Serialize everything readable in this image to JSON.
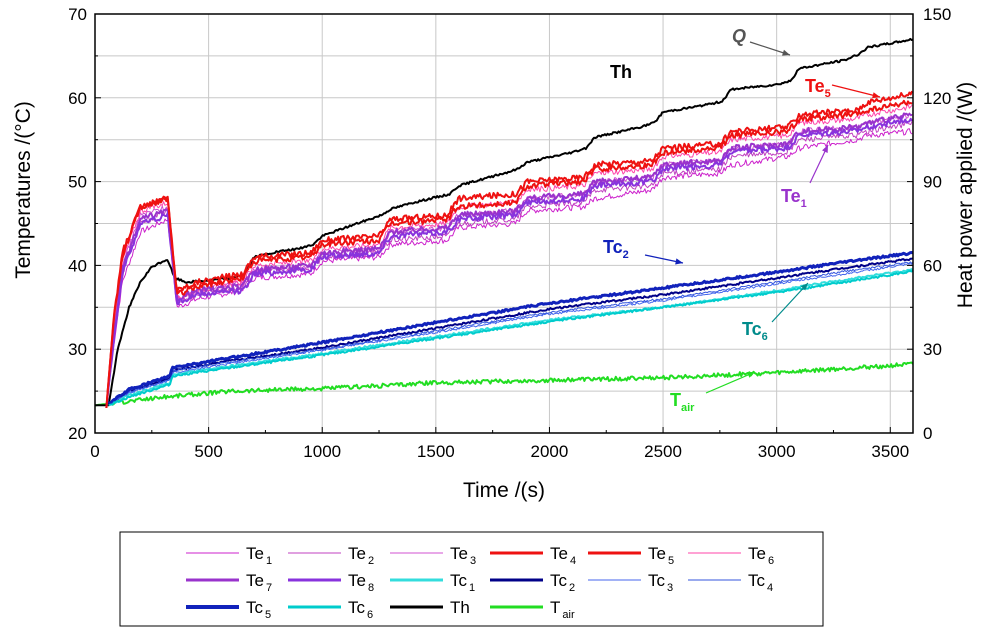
{
  "chart_data": {
    "type": "line",
    "xlabel": "Time   /(s)",
    "ylabel_left": "Temperatures   /(°C)",
    "ylabel_right": "Heat power applied   /(W)",
    "xlim": [
      0,
      3600
    ],
    "ylim_left": [
      20,
      70
    ],
    "ylim_right": [
      0,
      150
    ],
    "xticks": [
      0,
      500,
      1000,
      1500,
      2000,
      2500,
      3000,
      3500
    ],
    "yticks_left": [
      20,
      30,
      40,
      50,
      60,
      70
    ],
    "yticks_right": [
      0,
      30,
      60,
      90,
      120,
      150
    ],
    "grid": true,
    "legend_placement": "bottom",
    "series": [
      {
        "name": "Te1",
        "sub": "1",
        "base": "Te",
        "color": "#cc22cc",
        "width": 1,
        "axis": "left",
        "x": [
          50,
          80,
          120,
          200,
          320,
          360,
          450,
          650,
          700,
          950,
          1000,
          1250,
          1300,
          1550,
          1600,
          1850,
          1900,
          2150,
          2200,
          2450,
          2500,
          2750,
          2800,
          3050,
          3100,
          3350,
          3400,
          3600
        ],
        "y": [
          23,
          30,
          38,
          44,
          45.5,
          35,
          36,
          37,
          38.5,
          39,
          40.5,
          41,
          42.5,
          43,
          44.5,
          45,
          46.5,
          47,
          48,
          49,
          50.5,
          51,
          52,
          53,
          54,
          55,
          55.5,
          56
        ]
      },
      {
        "name": "Te2",
        "sub": "2",
        "base": "Te",
        "color": "#c040c0",
        "width": 1,
        "axis": "left",
        "x": [
          50,
          80,
          120,
          200,
          320,
          360,
          450,
          650,
          700,
          950,
          1000,
          1250,
          1300,
          1550,
          1600,
          1850,
          1900,
          2150,
          2200,
          2450,
          2500,
          2750,
          2800,
          3050,
          3100,
          3350,
          3400,
          3600
        ],
        "y": [
          23,
          31,
          39,
          45,
          46.5,
          35.5,
          36.5,
          37.5,
          39,
          39.5,
          41,
          41.5,
          43,
          43.5,
          45,
          45.5,
          47,
          47.5,
          49,
          49.5,
          51,
          51.5,
          53,
          53.5,
          55,
          55.5,
          56,
          57
        ]
      },
      {
        "name": "Te3",
        "sub": "3",
        "base": "Te",
        "color": "#d050d0",
        "width": 1,
        "axis": "left",
        "x": [
          50,
          80,
          120,
          200,
          320,
          360,
          450,
          650,
          700,
          950,
          1000,
          1250,
          1300,
          1550,
          1600,
          1850,
          1900,
          2150,
          2200,
          2450,
          2500,
          2750,
          2800,
          3050,
          3100,
          3350,
          3400,
          3600
        ],
        "y": [
          23,
          32,
          40,
          46,
          47,
          36,
          37,
          38,
          39.5,
          40,
          41.5,
          42,
          44,
          44.5,
          46,
          46.5,
          48,
          48.5,
          50,
          50.5,
          52,
          52.5,
          54,
          54.5,
          56,
          56.5,
          57,
          58
        ]
      },
      {
        "name": "Te4",
        "sub": "4",
        "base": "Te",
        "color": "#ee1111",
        "width": 2,
        "axis": "left",
        "x": [
          50,
          80,
          120,
          200,
          320,
          360,
          450,
          650,
          700,
          950,
          1000,
          1250,
          1300,
          1550,
          1600,
          1850,
          1900,
          2150,
          2200,
          2450,
          2500,
          2750,
          2800,
          3050,
          3100,
          3350,
          3400,
          3600
        ],
        "y": [
          23,
          33,
          41,
          47,
          48,
          36.5,
          37.5,
          38.5,
          40.5,
          41,
          42.5,
          43,
          45,
          45.5,
          47,
          47.5,
          49.5,
          50,
          51.5,
          52,
          53.5,
          54,
          55.5,
          56,
          57.5,
          58,
          58.5,
          59.5
        ]
      },
      {
        "name": "Te5",
        "sub": "5",
        "base": "Te",
        "color": "#ee1111",
        "width": 2,
        "axis": "left",
        "x": [
          50,
          80,
          120,
          200,
          320,
          360,
          450,
          650,
          700,
          950,
          1000,
          1250,
          1300,
          1550,
          1600,
          1850,
          1900,
          2150,
          2200,
          2450,
          2500,
          2750,
          2800,
          3050,
          3100,
          3350,
          3400,
          3600
        ],
        "y": [
          23,
          33,
          41.5,
          47,
          48,
          37,
          38,
          39,
          41,
          41.5,
          43,
          43.5,
          45.5,
          46,
          48,
          48.5,
          50,
          50.5,
          52,
          52.5,
          54,
          54.5,
          56,
          56.5,
          58,
          58.5,
          59.5,
          60.5
        ]
      },
      {
        "name": "Te6",
        "sub": "6",
        "base": "Te",
        "color": "#ff44aa",
        "width": 1,
        "axis": "left",
        "x": [
          50,
          80,
          120,
          200,
          320,
          360,
          450,
          650,
          700,
          950,
          1000,
          1250,
          1300,
          1550,
          1600,
          1850,
          1900,
          2150,
          2200,
          2450,
          2500,
          2750,
          2800,
          3050,
          3100,
          3350,
          3400,
          3600
        ],
        "y": [
          23,
          32,
          40.5,
          46.5,
          47.5,
          36,
          37,
          38,
          40,
          40.5,
          42,
          42.5,
          44.5,
          45,
          47,
          47.5,
          49,
          49.5,
          51,
          51.5,
          53,
          53.5,
          55,
          55.5,
          57,
          57.5,
          58,
          59
        ]
      },
      {
        "name": "Te7",
        "sub": "7",
        "base": "Te",
        "color": "#9933cc",
        "width": 2,
        "axis": "left",
        "x": [
          50,
          80,
          120,
          200,
          320,
          360,
          450,
          650,
          700,
          950,
          1000,
          1250,
          1300,
          1550,
          1600,
          1850,
          1900,
          2150,
          2200,
          2450,
          2500,
          2750,
          2800,
          3050,
          3100,
          3350,
          3400,
          3600
        ],
        "y": [
          23,
          31,
          39.5,
          45.5,
          46.5,
          36,
          37,
          37.5,
          39.5,
          40,
          41.5,
          42,
          44,
          44.5,
          46,
          46.5,
          48,
          48.5,
          50,
          50.5,
          52,
          52.5,
          54,
          54.5,
          56,
          56.5,
          57,
          58
        ]
      },
      {
        "name": "Te8",
        "sub": "8",
        "base": "Te",
        "color": "#8833dd",
        "width": 2,
        "axis": "left",
        "x": [
          50,
          80,
          120,
          200,
          320,
          360,
          450,
          650,
          700,
          950,
          1000,
          1250,
          1300,
          1550,
          1600,
          1850,
          1900,
          2150,
          2200,
          2450,
          2500,
          2750,
          2800,
          3050,
          3100,
          3350,
          3400,
          3600
        ],
        "y": [
          23,
          30.5,
          39,
          45,
          46,
          35.5,
          36.5,
          37,
          39,
          39.5,
          41,
          41.5,
          43.5,
          44,
          45.5,
          46,
          47.5,
          48,
          49.5,
          50,
          51.5,
          52,
          53.5,
          54,
          55.5,
          56,
          56.5,
          57.5
        ]
      },
      {
        "name": "Tc1",
        "sub": "1",
        "base": "Tc",
        "color": "#33dddd",
        "width": 2,
        "axis": "left",
        "x": [
          60,
          150,
          330,
          340,
          600,
          1000,
          1500,
          2000,
          2500,
          3000,
          3300,
          3600
        ],
        "y": [
          23.5,
          24.5,
          26,
          27,
          28,
          29.5,
          31.5,
          33.5,
          35,
          37,
          38.3,
          39.5
        ]
      },
      {
        "name": "Tc2",
        "sub": "2",
        "base": "Tc",
        "color": "#000088",
        "width": 2,
        "axis": "left",
        "x": [
          60,
          150,
          330,
          340,
          600,
          1000,
          1500,
          2000,
          2500,
          3000,
          3300,
          3600
        ],
        "y": [
          23.5,
          25,
          26.5,
          27.5,
          28.6,
          30.2,
          32.5,
          34.8,
          36.5,
          38.5,
          39.7,
          40.8
        ]
      },
      {
        "name": "Tc3",
        "sub": "3",
        "base": "Tc",
        "color": "#4466ee",
        "width": 1,
        "axis": "left",
        "x": [
          60,
          150,
          330,
          340,
          600,
          1000,
          1500,
          2000,
          2500,
          3000,
          3300,
          3600
        ],
        "y": [
          23.5,
          24.8,
          26.3,
          27.2,
          28.3,
          29.9,
          32,
          34.2,
          35.8,
          37.8,
          39,
          40.2
        ]
      },
      {
        "name": "Tc4",
        "sub": "4",
        "base": "Tc",
        "color": "#3355dd",
        "width": 1,
        "axis": "left",
        "x": [
          60,
          150,
          330,
          340,
          600,
          1000,
          1500,
          2000,
          2500,
          3000,
          3300,
          3600
        ],
        "y": [
          23.5,
          24.9,
          26.4,
          27.4,
          28.5,
          30,
          32.2,
          34.4,
          36,
          38,
          39.3,
          40.4
        ]
      },
      {
        "name": "Tc5",
        "sub": "5",
        "base": "Tc",
        "color": "#1122bb",
        "width": 3,
        "axis": "left",
        "x": [
          60,
          150,
          330,
          340,
          600,
          1000,
          1500,
          2000,
          2500,
          3000,
          3300,
          3600
        ],
        "y": [
          23.5,
          25.2,
          26.8,
          27.8,
          29,
          30.8,
          33.2,
          35.5,
          37.3,
          39.2,
          40.4,
          41.5
        ]
      },
      {
        "name": "Tc6",
        "sub": "6",
        "base": "Tc",
        "color": "#00cccc",
        "width": 2,
        "axis": "left",
        "x": [
          60,
          150,
          330,
          340,
          600,
          1000,
          1500,
          2000,
          2500,
          3000,
          3300,
          3600
        ],
        "y": [
          23.3,
          24.3,
          25.8,
          26.8,
          27.8,
          29.3,
          31.3,
          33.3,
          35,
          36.8,
          38,
          39.3
        ]
      },
      {
        "name": "Th",
        "sub": "",
        "base": "Th",
        "color": "#000000",
        "width": 2,
        "axis": "left",
        "x": [
          0,
          60,
          70,
          100,
          150,
          200,
          250,
          300,
          320,
          350,
          400,
          500,
          600,
          660,
          700,
          800,
          900,
          960,
          1000,
          1100,
          1260,
          1300,
          1400,
          1560,
          1600,
          1800,
          1860,
          1900,
          2100,
          2160,
          2200,
          2400,
          2460,
          2500,
          2700,
          2760,
          2800,
          3000,
          3060,
          3100,
          3300,
          3360,
          3400,
          3600
        ],
        "y": [
          23.3,
          23.3,
          25,
          30,
          35,
          38,
          39.8,
          40.5,
          40.7,
          38.5,
          38,
          38.2,
          38.5,
          39,
          41,
          41.6,
          42,
          42.5,
          43.5,
          44.5,
          46,
          46.7,
          47.5,
          48.5,
          49.5,
          51,
          51.5,
          52.3,
          53.5,
          54,
          55.3,
          56.5,
          57,
          58.3,
          59.2,
          59.6,
          61,
          61.6,
          62,
          63.5,
          64.5,
          65.2,
          66,
          67
        ]
      },
      {
        "name": "Tair",
        "sub": "air",
        "base": "T",
        "color": "#22dd22",
        "width": 2,
        "axis": "left",
        "x": [
          0,
          300,
          600,
          1000,
          1500,
          2000,
          2500,
          3000,
          3300,
          3600
        ],
        "y": [
          23.3,
          24.3,
          25,
          25.3,
          26,
          26.3,
          26.6,
          27.2,
          27.7,
          28.2
        ]
      },
      {
        "name": "Q",
        "color": "#555555",
        "width": 2.5,
        "axis": "right",
        "step": true,
        "x": [
          0,
          60,
          360,
          660,
          960,
          1260,
          1560,
          1860,
          2160,
          2460,
          2760,
          3060,
          3360,
          3600
        ],
        "y": [
          0,
          40,
          50,
          60,
          70,
          80,
          90,
          100,
          110,
          120,
          130,
          140,
          150,
          150
        ]
      }
    ],
    "annotations": [
      {
        "text": "Q",
        "sub": "",
        "color": "#555555",
        "italic": true
      },
      {
        "text": "Th",
        "sub": "",
        "color": "#000000",
        "italic": false
      },
      {
        "text": "Te",
        "sub": "5",
        "color": "#ee1111",
        "italic": false
      },
      {
        "text": "Te",
        "sub": "1",
        "color": "#9933cc",
        "italic": false
      },
      {
        "text": "Tc",
        "sub": "2",
        "color": "#1122bb",
        "italic": false
      },
      {
        "text": "Tc",
        "sub": "6",
        "color": "#008b8b",
        "italic": false
      },
      {
        "text": "T",
        "sub": "air",
        "color": "#22dd22",
        "italic": false
      }
    ]
  }
}
